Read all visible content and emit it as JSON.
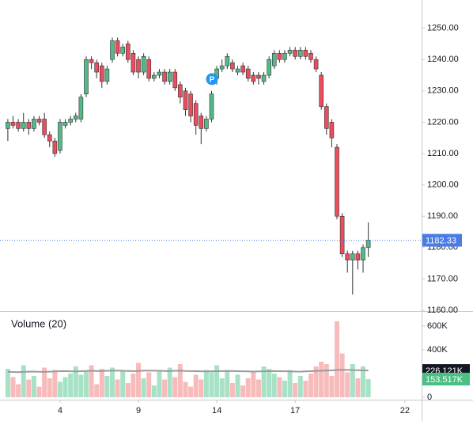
{
  "chart_data": [
    {
      "type": "candlestick",
      "open": [
        1218,
        1220,
        1220,
        1218,
        1220,
        1218,
        1221,
        1221,
        1216,
        1214,
        1211,
        1219,
        1220,
        1221,
        1221,
        1229,
        1240,
        1239,
        1238,
        1233,
        1240,
        1246,
        1242,
        1245,
        1242,
        1240,
        1236,
        1240,
        1234,
        1235,
        1236,
        1233,
        1236,
        1232,
        1230,
        1229,
        1226,
        1222,
        1218,
        1221,
        1234,
        1237,
        1238,
        1239,
        1236,
        1238,
        1237,
        1235,
        1235,
        1233,
        1235,
        1238,
        1242,
        1240,
        1242,
        1243,
        1241,
        1243,
        1242,
        1240,
        1235,
        1225,
        1220,
        1212,
        1190,
        1178,
        1176,
        1178,
        1176,
        1180
      ],
      "high": [
        1221,
        1222,
        1221,
        1223,
        1221,
        1222,
        1222,
        1223,
        1217,
        1215,
        1221,
        1221,
        1222,
        1223,
        1229,
        1241,
        1241,
        1240,
        1239,
        1238,
        1247,
        1247,
        1245,
        1246,
        1243,
        1241,
        1242,
        1241,
        1236,
        1237,
        1237,
        1237,
        1237,
        1233,
        1231,
        1230,
        1227,
        1223,
        1222,
        1230,
        1238,
        1240,
        1242,
        1240,
        1238,
        1239,
        1238,
        1236,
        1236,
        1236,
        1241,
        1243,
        1243,
        1243,
        1244,
        1244,
        1244,
        1244,
        1243,
        1241,
        1236,
        1226,
        1221,
        1213,
        1191,
        1179,
        1179,
        1179,
        1181,
        1188
      ],
      "low": [
        1214,
        1218,
        1217,
        1217,
        1216,
        1217,
        1219,
        1215,
        1212,
        1209,
        1210,
        1218,
        1219,
        1220,
        1220,
        1228,
        1237,
        1234,
        1231,
        1232,
        1239,
        1241,
        1241,
        1239,
        1235,
        1234,
        1235,
        1233,
        1233,
        1234,
        1232,
        1232,
        1230,
        1226,
        1222,
        1220,
        1216,
        1213,
        1217,
        1220,
        1232,
        1236,
        1237,
        1236,
        1235,
        1235,
        1233,
        1232,
        1232,
        1232,
        1234,
        1237,
        1239,
        1239,
        1241,
        1240,
        1240,
        1240,
        1239,
        1236,
        1224,
        1216,
        1212,
        1189,
        1177,
        1172,
        1165,
        1173,
        1172,
        1177
      ],
      "close": [
        1220,
        1219,
        1218,
        1220,
        1218,
        1221,
        1220,
        1216,
        1214,
        1210,
        1220,
        1220,
        1221,
        1222,
        1228,
        1240,
        1239,
        1236,
        1233,
        1237,
        1246,
        1242,
        1244,
        1240,
        1236,
        1236,
        1241,
        1234,
        1235,
        1236,
        1233,
        1236,
        1231,
        1228,
        1224,
        1222,
        1219,
        1218,
        1221,
        1229,
        1237,
        1238,
        1241,
        1237,
        1237,
        1236,
        1234,
        1233,
        1234,
        1235,
        1240,
        1242,
        1240,
        1242,
        1243,
        1241,
        1243,
        1241,
        1240,
        1237,
        1225,
        1218,
        1215,
        1190,
        1178,
        1176,
        1178,
        1176,
        1180,
        1182.33
      ],
      "up_color": "#53b987",
      "down_color": "#eb4d5c",
      "last_color": "#4a7ce6",
      "xlim": [
        -1.5,
        79.2
      ],
      "xticks": [
        {
          "value": 10,
          "label": "4"
        },
        {
          "value": 25,
          "label": "9"
        },
        {
          "value": 40,
          "label": "14"
        },
        {
          "value": 55,
          "label": "17"
        },
        {
          "value": 76,
          "label": "22"
        }
      ],
      "ylim": [
        1160,
        1259
      ],
      "yticks": [
        {
          "value": 1160,
          "label": "1160.00"
        },
        {
          "value": 1170,
          "label": "1170.00"
        },
        {
          "value": 1180,
          "label": "1180.00"
        },
        {
          "value": 1190,
          "label": "1190.00"
        },
        {
          "value": 1200,
          "label": "1200.00"
        },
        {
          "value": 1210,
          "label": "1210.00"
        },
        {
          "value": 1220,
          "label": "1220.00"
        },
        {
          "value": 1230,
          "label": "1230.00"
        },
        {
          "value": 1240,
          "label": "1240.00"
        },
        {
          "value": 1250,
          "label": "1250.00"
        }
      ]
    },
    {
      "type": "bar",
      "title": "Volume (20)",
      "series": [
        {
          "values": [
            240000,
            170000,
            110000,
            270000,
            150000,
            180000,
            90000,
            250000,
            160000,
            230000,
            130000,
            170000,
            200000,
            260000,
            190000,
            220000,
            270000,
            110000,
            240000,
            180000,
            250000,
            150000,
            230000,
            120000,
            200000,
            290000,
            160000,
            210000,
            100000,
            230000,
            150000,
            250000,
            170000,
            280000,
            130000,
            90000,
            190000,
            150000,
            230000,
            210000,
            270000,
            160000,
            230000,
            120000,
            190000,
            100000,
            160000,
            220000,
            150000,
            260000,
            240000,
            200000,
            170000,
            140000,
            230000,
            120000,
            180000,
            140000,
            200000,
            260000,
            300000,
            280000,
            180000,
            640000,
            370000,
            210000,
            280000,
            160000,
            260000,
            153517
          ],
          "value_labels": [
            null,
            null,
            null,
            null,
            null,
            null,
            null,
            null,
            null,
            null,
            null,
            null,
            null,
            null,
            null,
            null,
            null,
            null,
            null,
            null,
            null,
            null,
            null,
            null,
            null,
            null,
            null,
            null,
            null,
            null,
            null,
            null,
            null,
            null,
            null,
            null,
            null,
            null,
            null,
            null,
            null,
            null,
            null,
            null,
            null,
            null,
            null,
            null,
            null,
            null,
            null,
            null,
            null,
            null,
            null,
            null,
            null,
            null,
            null,
            null,
            null,
            null,
            null,
            null,
            null,
            null,
            null,
            null,
            null,
            "153.517K"
          ],
          "up_color": "#a7e2c6",
          "down_color": "#f7bbbb",
          "label_color": "#4cbf83"
        },
        {
          "values": [
            215000,
            213000,
            212000,
            214000,
            216000,
            217000,
            215000,
            214000,
            216000,
            218000,
            220000,
            221000,
            219000,
            218000,
            220000,
            222000,
            223000,
            222000,
            221000,
            223000,
            224000,
            225000,
            223000,
            222000,
            221000,
            222000,
            224000,
            225000,
            224000,
            223000,
            222000,
            221000,
            223000,
            224000,
            222000,
            221000,
            220000,
            219000,
            218000,
            219000,
            220000,
            221000,
            222000,
            221000,
            220000,
            219000,
            218000,
            217000,
            218000,
            219000,
            220000,
            221000,
            220000,
            219000,
            218000,
            217000,
            216000,
            218000,
            220000,
            222000,
            224000,
            226000,
            227000,
            230000,
            232000,
            231000,
            229000,
            228000,
            227000,
            226121
          ],
          "value_labels": [
            null,
            null,
            null,
            null,
            null,
            null,
            null,
            null,
            null,
            null,
            null,
            null,
            null,
            null,
            null,
            null,
            null,
            null,
            null,
            null,
            null,
            null,
            null,
            null,
            null,
            null,
            null,
            null,
            null,
            null,
            null,
            null,
            null,
            null,
            null,
            null,
            null,
            null,
            null,
            null,
            null,
            null,
            null,
            null,
            null,
            null,
            null,
            null,
            null,
            null,
            null,
            null,
            null,
            null,
            null,
            null,
            null,
            null,
            null,
            null,
            null,
            null,
            null,
            null,
            null,
            null,
            null,
            null,
            null,
            "226.121K"
          ],
          "color": "#9a9a9a",
          "label_color": "#131722"
        }
      ],
      "ylim": [
        0,
        680000
      ],
      "yticks": [
        {
          "value": 0,
          "label": "0"
        },
        {
          "value": 400000,
          "label": "400K"
        },
        {
          "value": 600000,
          "label": "600K"
        }
      ]
    }
  ]
}
